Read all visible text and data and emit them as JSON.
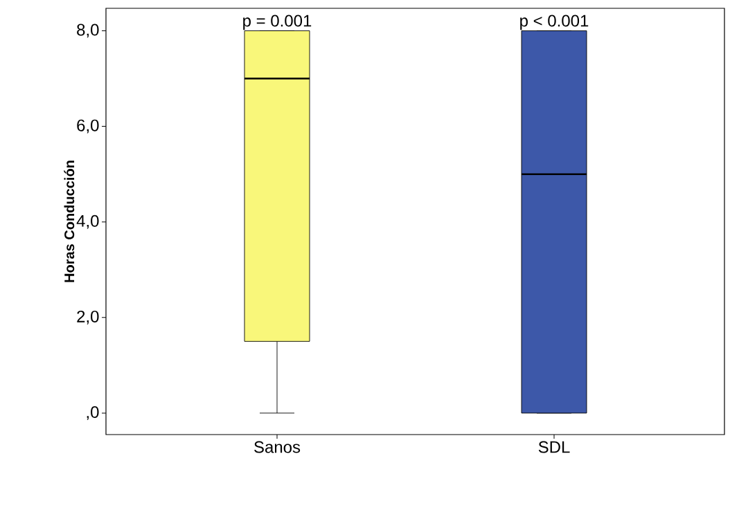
{
  "chart_data": {
    "type": "box",
    "ylabel": "Horas Conducción",
    "categories": [
      "Sanos",
      "SDL"
    ],
    "boxes": [
      {
        "low": 0,
        "q1": 1.5,
        "median": 7,
        "q3": 8,
        "high": 8
      },
      {
        "low": 0,
        "q1": 0,
        "median": 5,
        "q3": 8,
        "high": 8
      }
    ],
    "colors": [
      "#f9f77a",
      "#3d58a9"
    ],
    "ylim": [
      -0.45,
      8.47
    ],
    "yticks": [
      {
        "value": 0,
        "label": ",0"
      },
      {
        "value": 2,
        "label": "2,0"
      },
      {
        "value": 4,
        "label": "4,0"
      },
      {
        "value": 6,
        "label": "6,0"
      },
      {
        "value": 8,
        "label": "8,0"
      }
    ],
    "annotations": [
      "p = 0.001",
      "p < 0.001"
    ]
  }
}
